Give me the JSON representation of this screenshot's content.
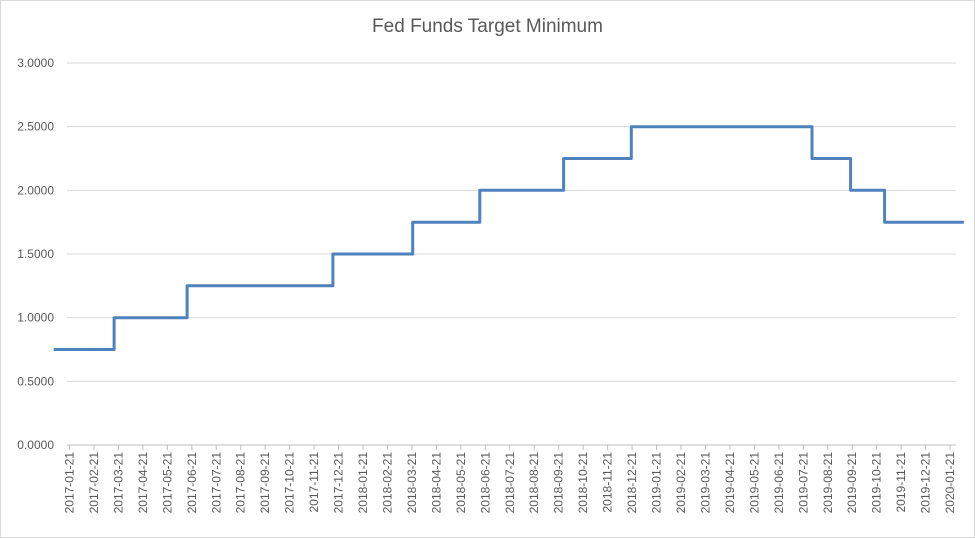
{
  "chart_data": {
    "type": "line",
    "title": "Fed Funds Target Minimum",
    "xlabel": "",
    "ylabel": "",
    "ylim": [
      0,
      3
    ],
    "yticks": [
      "0.0000",
      "0.5000",
      "1.0000",
      "1.5000",
      "2.0000",
      "2.5000",
      "3.0000"
    ],
    "grid": true,
    "legend": "none",
    "color": "#4f81bd",
    "categories": [
      "2017-01-21",
      "2017-02-21",
      "2017-03-21",
      "2017-04-21",
      "2017-05-21",
      "2017-06-21",
      "2017-07-21",
      "2017-08-21",
      "2017-09-21",
      "2017-10-21",
      "2017-11-21",
      "2017-12-21",
      "2018-01-21",
      "2018-02-21",
      "2018-03-21",
      "2018-04-21",
      "2018-05-21",
      "2018-06-21",
      "2018-07-21",
      "2018-08-21",
      "2018-09-21",
      "2018-10-21",
      "2018-11-21",
      "2018-12-21",
      "2019-01-21",
      "2019-02-21",
      "2019-03-21",
      "2019-04-21",
      "2019-05-21",
      "2019-06-21",
      "2019-07-21",
      "2019-08-21",
      "2019-09-21",
      "2019-10-21",
      "2019-11-21",
      "2019-12-21",
      "2020-01-21"
    ],
    "steps": [
      {
        "date": "2017-01-01",
        "value": 0.75
      },
      {
        "date": "2017-03-16",
        "value": 1.0
      },
      {
        "date": "2017-06-15",
        "value": 1.25
      },
      {
        "date": "2017-12-14",
        "value": 1.5
      },
      {
        "date": "2018-03-22",
        "value": 1.75
      },
      {
        "date": "2018-06-14",
        "value": 2.0
      },
      {
        "date": "2018-09-27",
        "value": 2.25
      },
      {
        "date": "2018-12-20",
        "value": 2.5
      },
      {
        "date": "2019-08-01",
        "value": 2.25
      },
      {
        "date": "2019-09-19",
        "value": 2.0
      },
      {
        "date": "2019-10-31",
        "value": 1.75
      },
      {
        "date": "2020-02-06",
        "value": 1.75
      }
    ]
  }
}
